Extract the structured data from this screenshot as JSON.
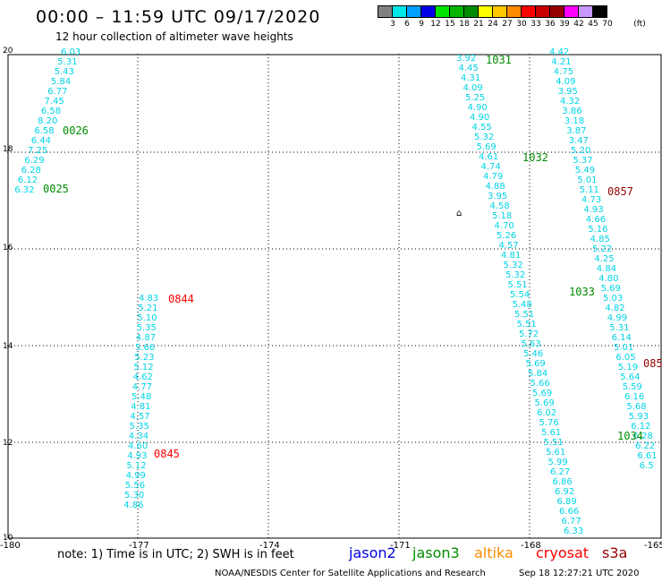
{
  "title": "00:00 – 11:59 UTC 09/17/2020",
  "subtitle": "12 hour collection of altimeter wave heights",
  "colorbar": {
    "unit": "(ft)",
    "labels": [
      "3",
      "6",
      "9",
      "12",
      "15",
      "18",
      "21",
      "24",
      "27",
      "30",
      "33",
      "36",
      "39",
      "42",
      "45",
      "70"
    ],
    "colors": [
      "#808080",
      "#00e6e6",
      "#00a0ff",
      "#0000e6",
      "#00e600",
      "#00b400",
      "#008c00",
      "#ffff00",
      "#ffc800",
      "#ff8c00",
      "#ff0000",
      "#c80000",
      "#960000",
      "#ff00ff",
      "#c896ff",
      "#000000"
    ]
  },
  "axes": {
    "y_ticks": [
      "20",
      "18",
      "16",
      "14",
      "12",
      "10"
    ],
    "x_ticks": [
      "-180",
      "-177",
      "-174",
      "-171",
      "-168",
      "-165"
    ]
  },
  "passes": [
    {
      "label": "0026",
      "color": "#008c00"
    },
    {
      "label": "0025",
      "color": "#008c00"
    },
    {
      "label": "0844",
      "color": "#ff0000"
    },
    {
      "label": "0845",
      "color": "#ff0000"
    },
    {
      "label": "1031",
      "color": "#008c00"
    },
    {
      "label": "1032",
      "color": "#008c00"
    },
    {
      "label": "1033",
      "color": "#008c00"
    },
    {
      "label": "1034",
      "color": "#008c00"
    },
    {
      "label": "0857",
      "color": "#960000"
    },
    {
      "label": "085",
      "color": "#960000"
    }
  ],
  "tracks": [
    {
      "values": [
        "6.03",
        "5.31",
        "5.43",
        "5.84",
        "6.77",
        "7.45",
        "6.58",
        "8.20",
        "6.58",
        "6.44",
        "7.25",
        "6.29",
        "6.28",
        "6.12",
        "6.32"
      ]
    },
    {
      "values": [
        "4.83",
        "5.21",
        "5.10",
        "5.35",
        "4.87",
        "5.66",
        "5.23",
        "5.12",
        "4.62",
        "4.77",
        "5.48",
        "4.81",
        "4.57",
        "5.35",
        "4.34",
        "4.60",
        "4.93",
        "5.12",
        "4.99",
        "5.56",
        "5.30",
        "4.86"
      ]
    },
    {
      "values": [
        "3.92",
        "4.45",
        "4.31",
        "4.09",
        "5.25",
        "4.90",
        "4.90",
        "4.55",
        "5.32",
        "5.69",
        "4.61",
        "4.74",
        "4.79",
        "4.88",
        "3.95",
        "4.58",
        "5.18",
        "4.70",
        "5.26",
        "4.57",
        "4.81",
        "5.32",
        "5.32",
        "5.51",
        "5.54",
        "5.48",
        "5.51",
        "5.51",
        "5.72",
        "5.63",
        "5.46",
        "5.69",
        "5.84",
        "5.66",
        "5.69",
        "5.69",
        "6.02",
        "5.76",
        "5.61",
        "5.51",
        "5.61",
        "5.99",
        "6.27",
        "6.86",
        "6.92",
        "6.89",
        "6.66",
        "6.77",
        "6.33"
      ]
    },
    {
      "values": [
        "4.42",
        "4.21",
        "4.75",
        "4.09",
        "3.95",
        "4.32",
        "3.86",
        "3.18",
        "3.87",
        "3.47",
        "5.20",
        "5.37",
        "5.49",
        "5.01",
        "5.11",
        "4.73",
        "4.93",
        "4.66",
        "5.16",
        "4.85",
        "5.22",
        "4.25",
        "4.84",
        "4.80",
        "5.69",
        "5.03",
        "4.82",
        "4.99",
        "5.31",
        "6.14",
        "5.01",
        "6.05",
        "5.19",
        "5.64",
        "5.59",
        "6.16",
        "5.68",
        "5.93",
        "6.12",
        "6.28",
        "6.22",
        "6.61",
        "6.5"
      ]
    }
  ],
  "note": "note:  1) Time is in UTC; 2) SWH is in feet",
  "satellites": [
    {
      "name": "jason2",
      "color": "#0000e6"
    },
    {
      "name": "jason3",
      "color": "#008c00"
    },
    {
      "name": "altika",
      "color": "#ff8c00"
    },
    {
      "name": "cryosat",
      "color": "#ff0000"
    },
    {
      "name": "s3a",
      "color": "#960000"
    }
  ],
  "footer_left": "NOAA/NESDIS Center for Satellite Applications and Research",
  "footer_right": "Sep 18 12:27:21 UTC 2020"
}
